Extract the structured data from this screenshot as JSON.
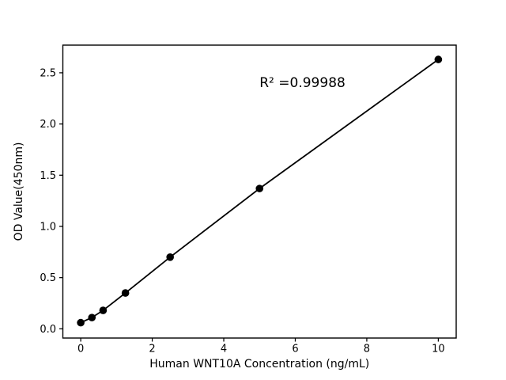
{
  "figure": {
    "background": "#ffffff"
  },
  "chart_data": {
    "type": "scatter",
    "subtype": "line-with-markers",
    "x": [
      0,
      0.3125,
      0.625,
      1.25,
      2.5,
      5,
      10
    ],
    "y": [
      0.06,
      0.11,
      0.18,
      0.35,
      0.7,
      1.37,
      2.63
    ],
    "title": "",
    "xlabel": "Human WNT10A Concentration (ng/mL)",
    "ylabel": "OD Value(450nm)",
    "annotation": {
      "text": "R² =0.99988",
      "x": 5.0,
      "y": 2.36,
      "anchor": "start"
    },
    "xlim": [
      -0.5,
      10.5
    ],
    "ylim": [
      -0.09,
      2.77
    ],
    "xticks": {
      "values": [
        0,
        2,
        4,
        6,
        8,
        10
      ],
      "labels": [
        "0",
        "2",
        "4",
        "6",
        "8",
        "10"
      ]
    },
    "yticks": {
      "values": [
        0,
        0.5,
        1.0,
        1.5,
        2.0,
        2.5
      ],
      "labels": [
        "0.0",
        "0.5",
        "1.0",
        "1.5",
        "2.0",
        "2.5"
      ]
    },
    "grid": false,
    "legend": false,
    "marker": "filled-circle",
    "marker_radius": 4.8,
    "line_width": 1.8,
    "colors": {
      "line": "#000000",
      "marker": "#000000",
      "frame": "#000000",
      "text": "#000000",
      "background": "#ffffff"
    }
  }
}
